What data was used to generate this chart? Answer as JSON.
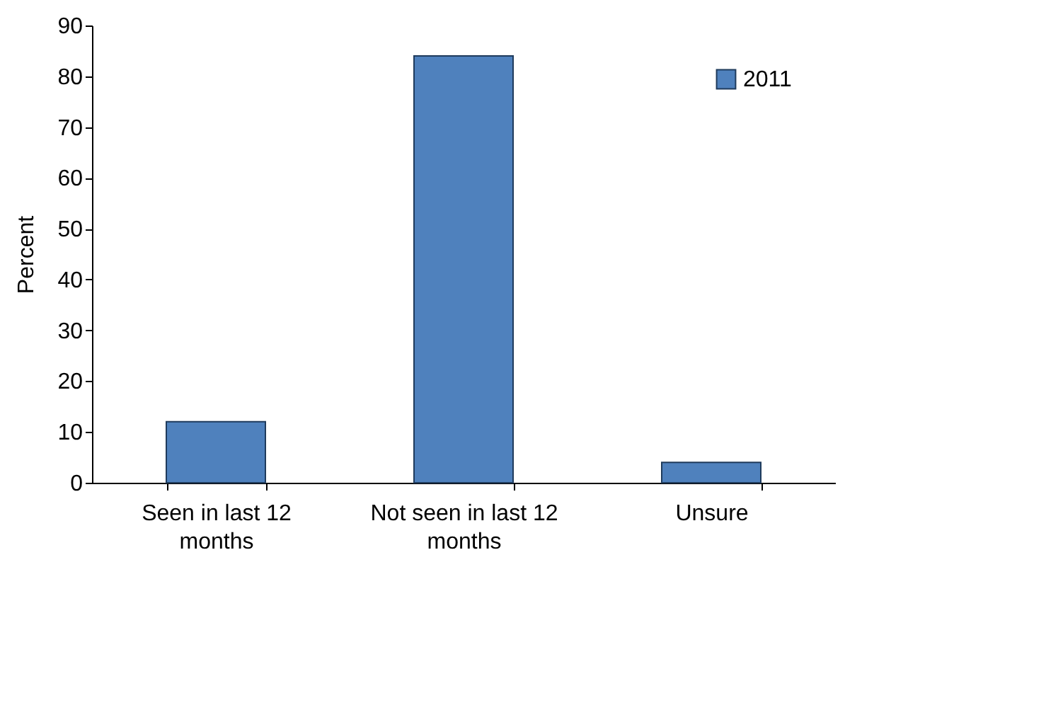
{
  "chart_data": {
    "type": "bar",
    "ylabel": "Percent",
    "categories": [
      "Seen in last 12 months",
      "Not seen in last 12 months",
      "Unsure"
    ],
    "series": [
      {
        "name": "2011",
        "color": "#4f81bd",
        "values": [
          12,
          84,
          4
        ]
      }
    ],
    "ylim": [
      0,
      90
    ],
    "yticks": [
      0,
      10,
      20,
      30,
      40,
      50,
      60,
      70,
      80,
      90
    ],
    "grid": false,
    "legend": "top right"
  }
}
